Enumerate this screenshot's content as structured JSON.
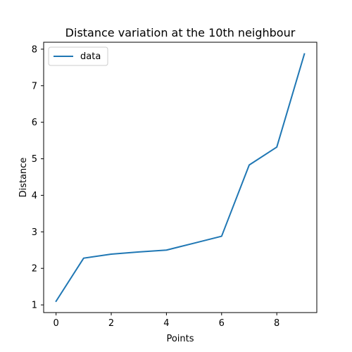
{
  "chart_data": {
    "type": "line",
    "title": "Distance variation at the 10th neighbour",
    "xlabel": "Points",
    "ylabel": "Distance",
    "x": [
      0,
      1,
      2,
      3,
      4,
      5,
      6,
      7,
      8,
      9
    ],
    "series": [
      {
        "name": "data",
        "values": [
          1.1,
          2.28,
          2.39,
          2.45,
          2.5,
          2.69,
          2.88,
          4.83,
          5.32,
          7.87
        ],
        "color": "#1f77b4"
      }
    ],
    "xlim": [
      -0.45,
      9.45
    ],
    "ylim": [
      0.79,
      8.19
    ],
    "xticks": [
      0,
      2,
      4,
      6,
      8
    ],
    "yticks": [
      1,
      2,
      3,
      4,
      5,
      6,
      7,
      8
    ],
    "grid": false,
    "legend_position": "top-left"
  }
}
